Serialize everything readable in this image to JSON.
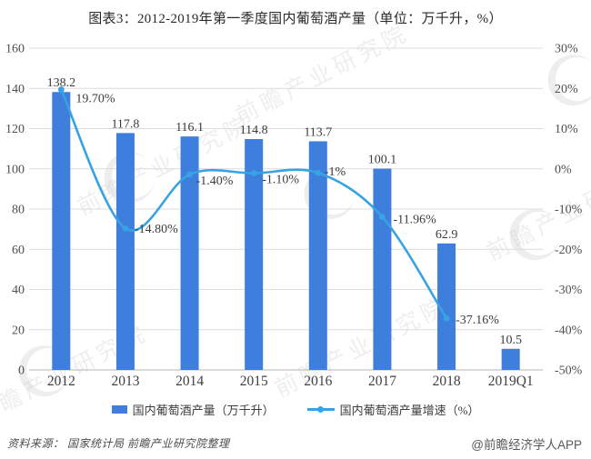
{
  "watermark": {
    "text": "前瞻产业研究院"
  },
  "chart_data": {
    "type": "bar+line",
    "title": "图表3：2012-2019年第一季度国内葡萄酒产量（单位：万千升，%）",
    "categories": [
      "2012",
      "2013",
      "2014",
      "2015",
      "2016",
      "2017",
      "2018",
      "2019Q1"
    ],
    "series": [
      {
        "name": "国内葡萄酒产量（万千升）",
        "type": "bar",
        "axis": "left",
        "values": [
          138.2,
          117.8,
          116.1,
          114.8,
          113.7,
          100.1,
          62.9,
          10.5
        ],
        "labels": [
          "138.2",
          "117.8",
          "116.1",
          "114.8",
          "113.7",
          "100.1",
          "62.9",
          "10.5"
        ]
      },
      {
        "name": "国内葡萄酒产量增速（%）",
        "type": "line",
        "axis": "right",
        "values": [
          19.7,
          -14.8,
          -1.4,
          -1.1,
          -1,
          -11.96,
          -37.16,
          null
        ],
        "labels": [
          "19.70%",
          "-14.80%",
          "-1.40%",
          "-1.10%",
          "-1%",
          "-11.96%",
          "-37.16%",
          null
        ]
      }
    ],
    "left_axis": {
      "min": 0,
      "max": 160,
      "step": 20,
      "ticks": [
        "160",
        "140",
        "120",
        "100",
        "80",
        "60",
        "40",
        "20",
        "0"
      ]
    },
    "right_axis": {
      "min": -50,
      "max": 30,
      "step": 10,
      "ticks": [
        "30%",
        "20%",
        "10%",
        "0%",
        "-10%",
        "-20%",
        "-30%",
        "-40%",
        "-50%"
      ]
    },
    "grid": true,
    "legend_position": "bottom",
    "colors": {
      "bar": "#3e7edd",
      "line": "#38a3e2",
      "grid": "#dcdcdc",
      "baseline": "#b5b5b5",
      "axis_text": "#4f4f4f",
      "label_text": "#3c3c3c"
    }
  },
  "footer": {
    "source": "资料来源：  国家统计局  前瞻产业研究院整理",
    "credit": "@前瞻经济学人APP"
  }
}
